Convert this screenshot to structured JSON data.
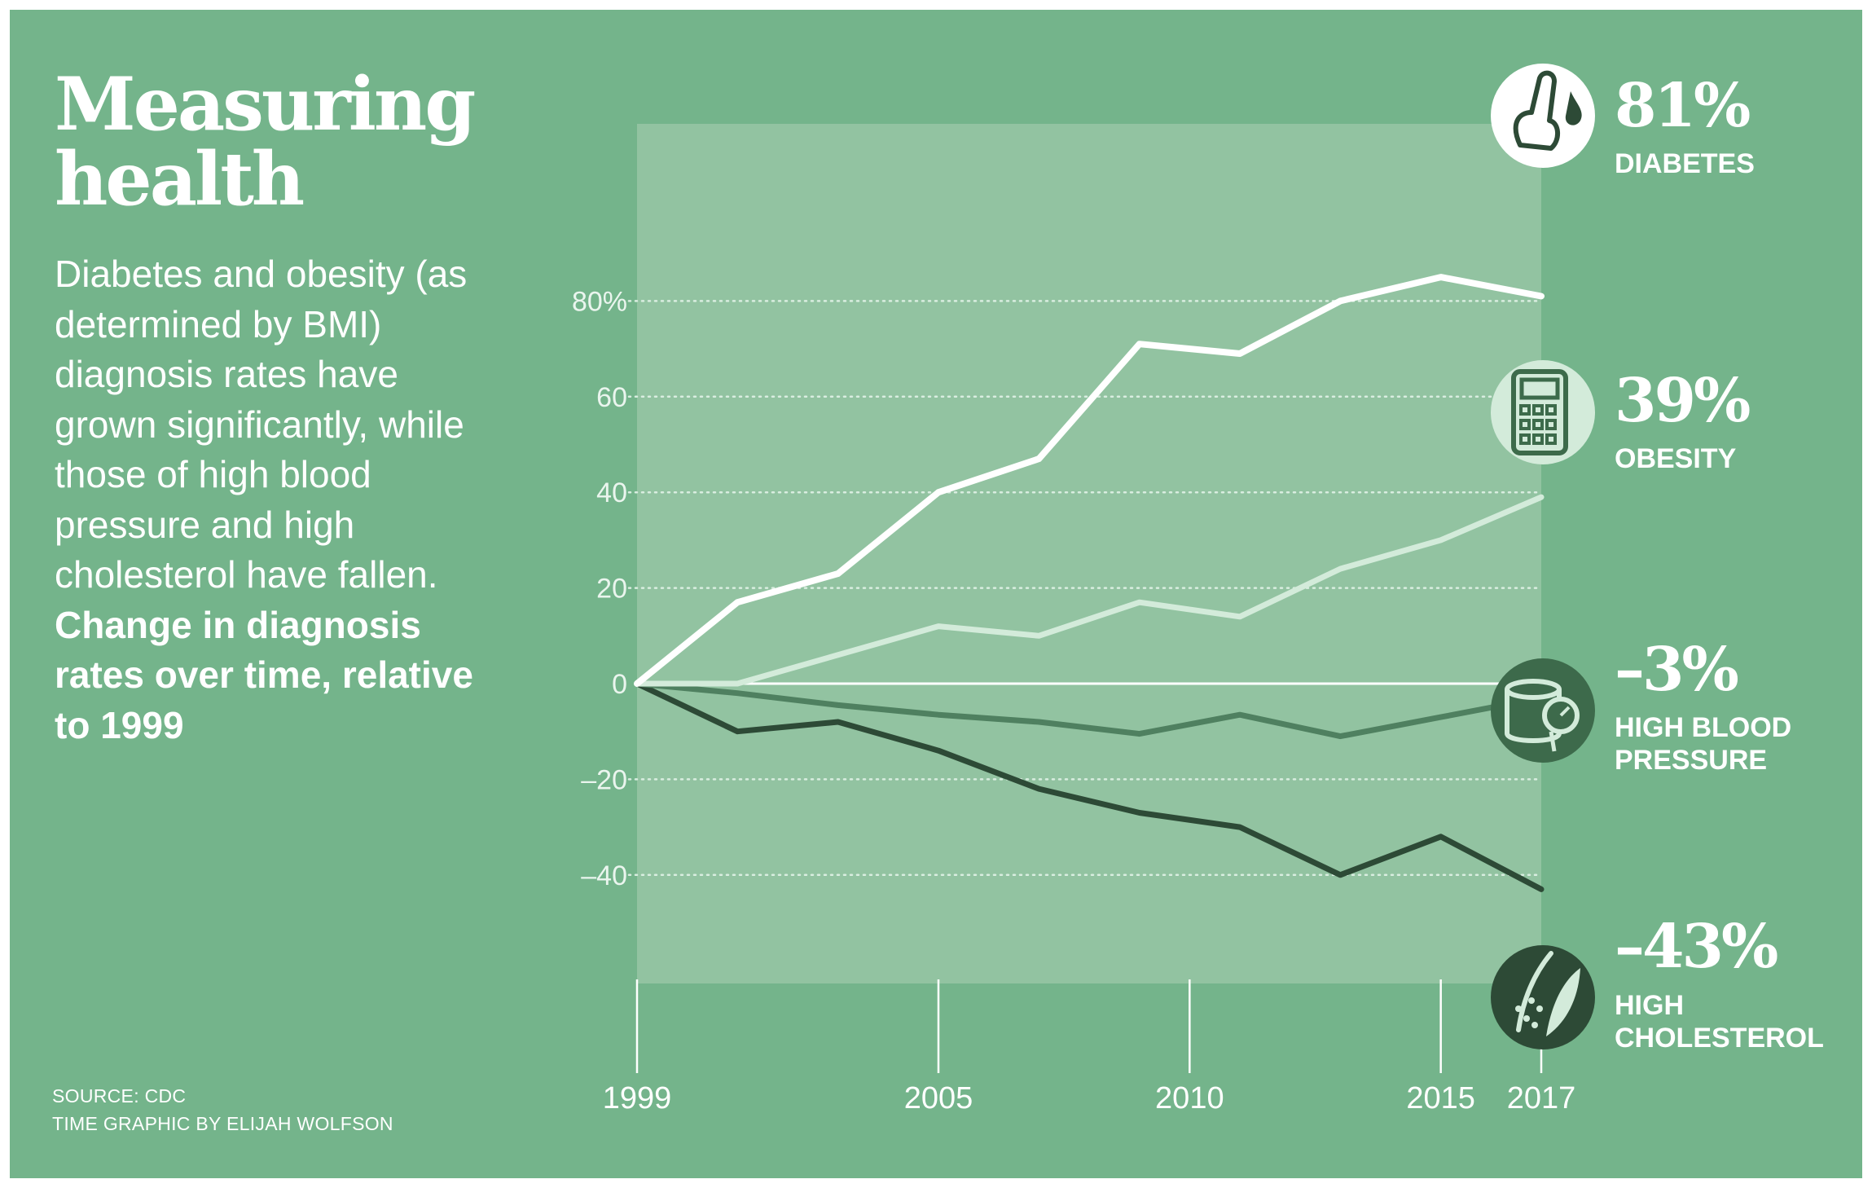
{
  "title_lines": [
    "Measuring",
    "health"
  ],
  "description": {
    "text": "Diabetes and obesity (as determined by BMI) diagnosis rates have grown significantly, while those of high blood pressure and high cholesterol have fallen.",
    "bold": "Change in diagnosis rates over time, relative to 1999"
  },
  "source": "SOURCE: CDC",
  "credit": "TIME GRAPHIC BY ELIJAH WOLFSON",
  "chart_data": {
    "type": "line",
    "title": "Change in diagnosis rates over time, relative to 1999",
    "xlabel": "",
    "ylabel": "",
    "x_ticks": [
      "1999",
      "2005",
      "2010",
      "2015",
      "2017"
    ],
    "y_ticks": [
      "80%",
      "60",
      "40",
      "20",
      "0",
      "–20",
      "–40"
    ],
    "y_tick_values": [
      80,
      60,
      40,
      20,
      0,
      -20,
      -40
    ],
    "xlim": [
      1999,
      2017
    ],
    "ylim": [
      -40,
      80
    ],
    "grid": true,
    "series": [
      {
        "name": "DIABETES",
        "label_lines": [
          "DIABETES"
        ],
        "final_label": "81%",
        "icon": "finger-prick-icon",
        "color": "#ffffff",
        "x": [
          1999,
          2001,
          2003,
          2005,
          2007,
          2009,
          2011,
          2013,
          2015,
          2017
        ],
        "values": [
          0,
          17,
          23,
          40,
          47,
          71,
          69,
          80,
          85,
          81
        ]
      },
      {
        "name": "OBESITY",
        "label_lines": [
          "OBESITY"
        ],
        "final_label": "39%",
        "icon": "calculator-icon",
        "color": "#d3ebda",
        "x": [
          1999,
          2001,
          2003,
          2005,
          2007,
          2009,
          2011,
          2013,
          2015,
          2017
        ],
        "values": [
          0,
          0,
          6,
          12,
          10,
          17,
          14,
          24,
          30,
          39
        ]
      },
      {
        "name": "HIGH BLOOD PRESSURE",
        "label_lines": [
          "HIGH BLOOD",
          "PRESSURE"
        ],
        "final_label": "–3%",
        "icon": "blood-pressure-cuff-icon",
        "color": "#4f8060",
        "x": [
          1999,
          2001,
          2003,
          2005,
          2007,
          2009,
          2011,
          2013,
          2015,
          2017
        ],
        "values": [
          0,
          -2,
          -4.5,
          -6.5,
          -8,
          -10.5,
          -6.5,
          -11,
          -7,
          -3
        ]
      },
      {
        "name": "HIGH CHOLESTEROL",
        "label_lines": [
          "HIGH",
          "CHOLESTEROL"
        ],
        "final_label": "–43%",
        "icon": "artery-plaque-icon",
        "color": "#2d4a36",
        "x": [
          1999,
          2001,
          2003,
          2005,
          2007,
          2009,
          2011,
          2013,
          2015,
          2017
        ],
        "values": [
          0,
          -10,
          -8,
          -14,
          -22,
          -27,
          -30,
          -40,
          -32,
          -43
        ]
      }
    ]
  }
}
